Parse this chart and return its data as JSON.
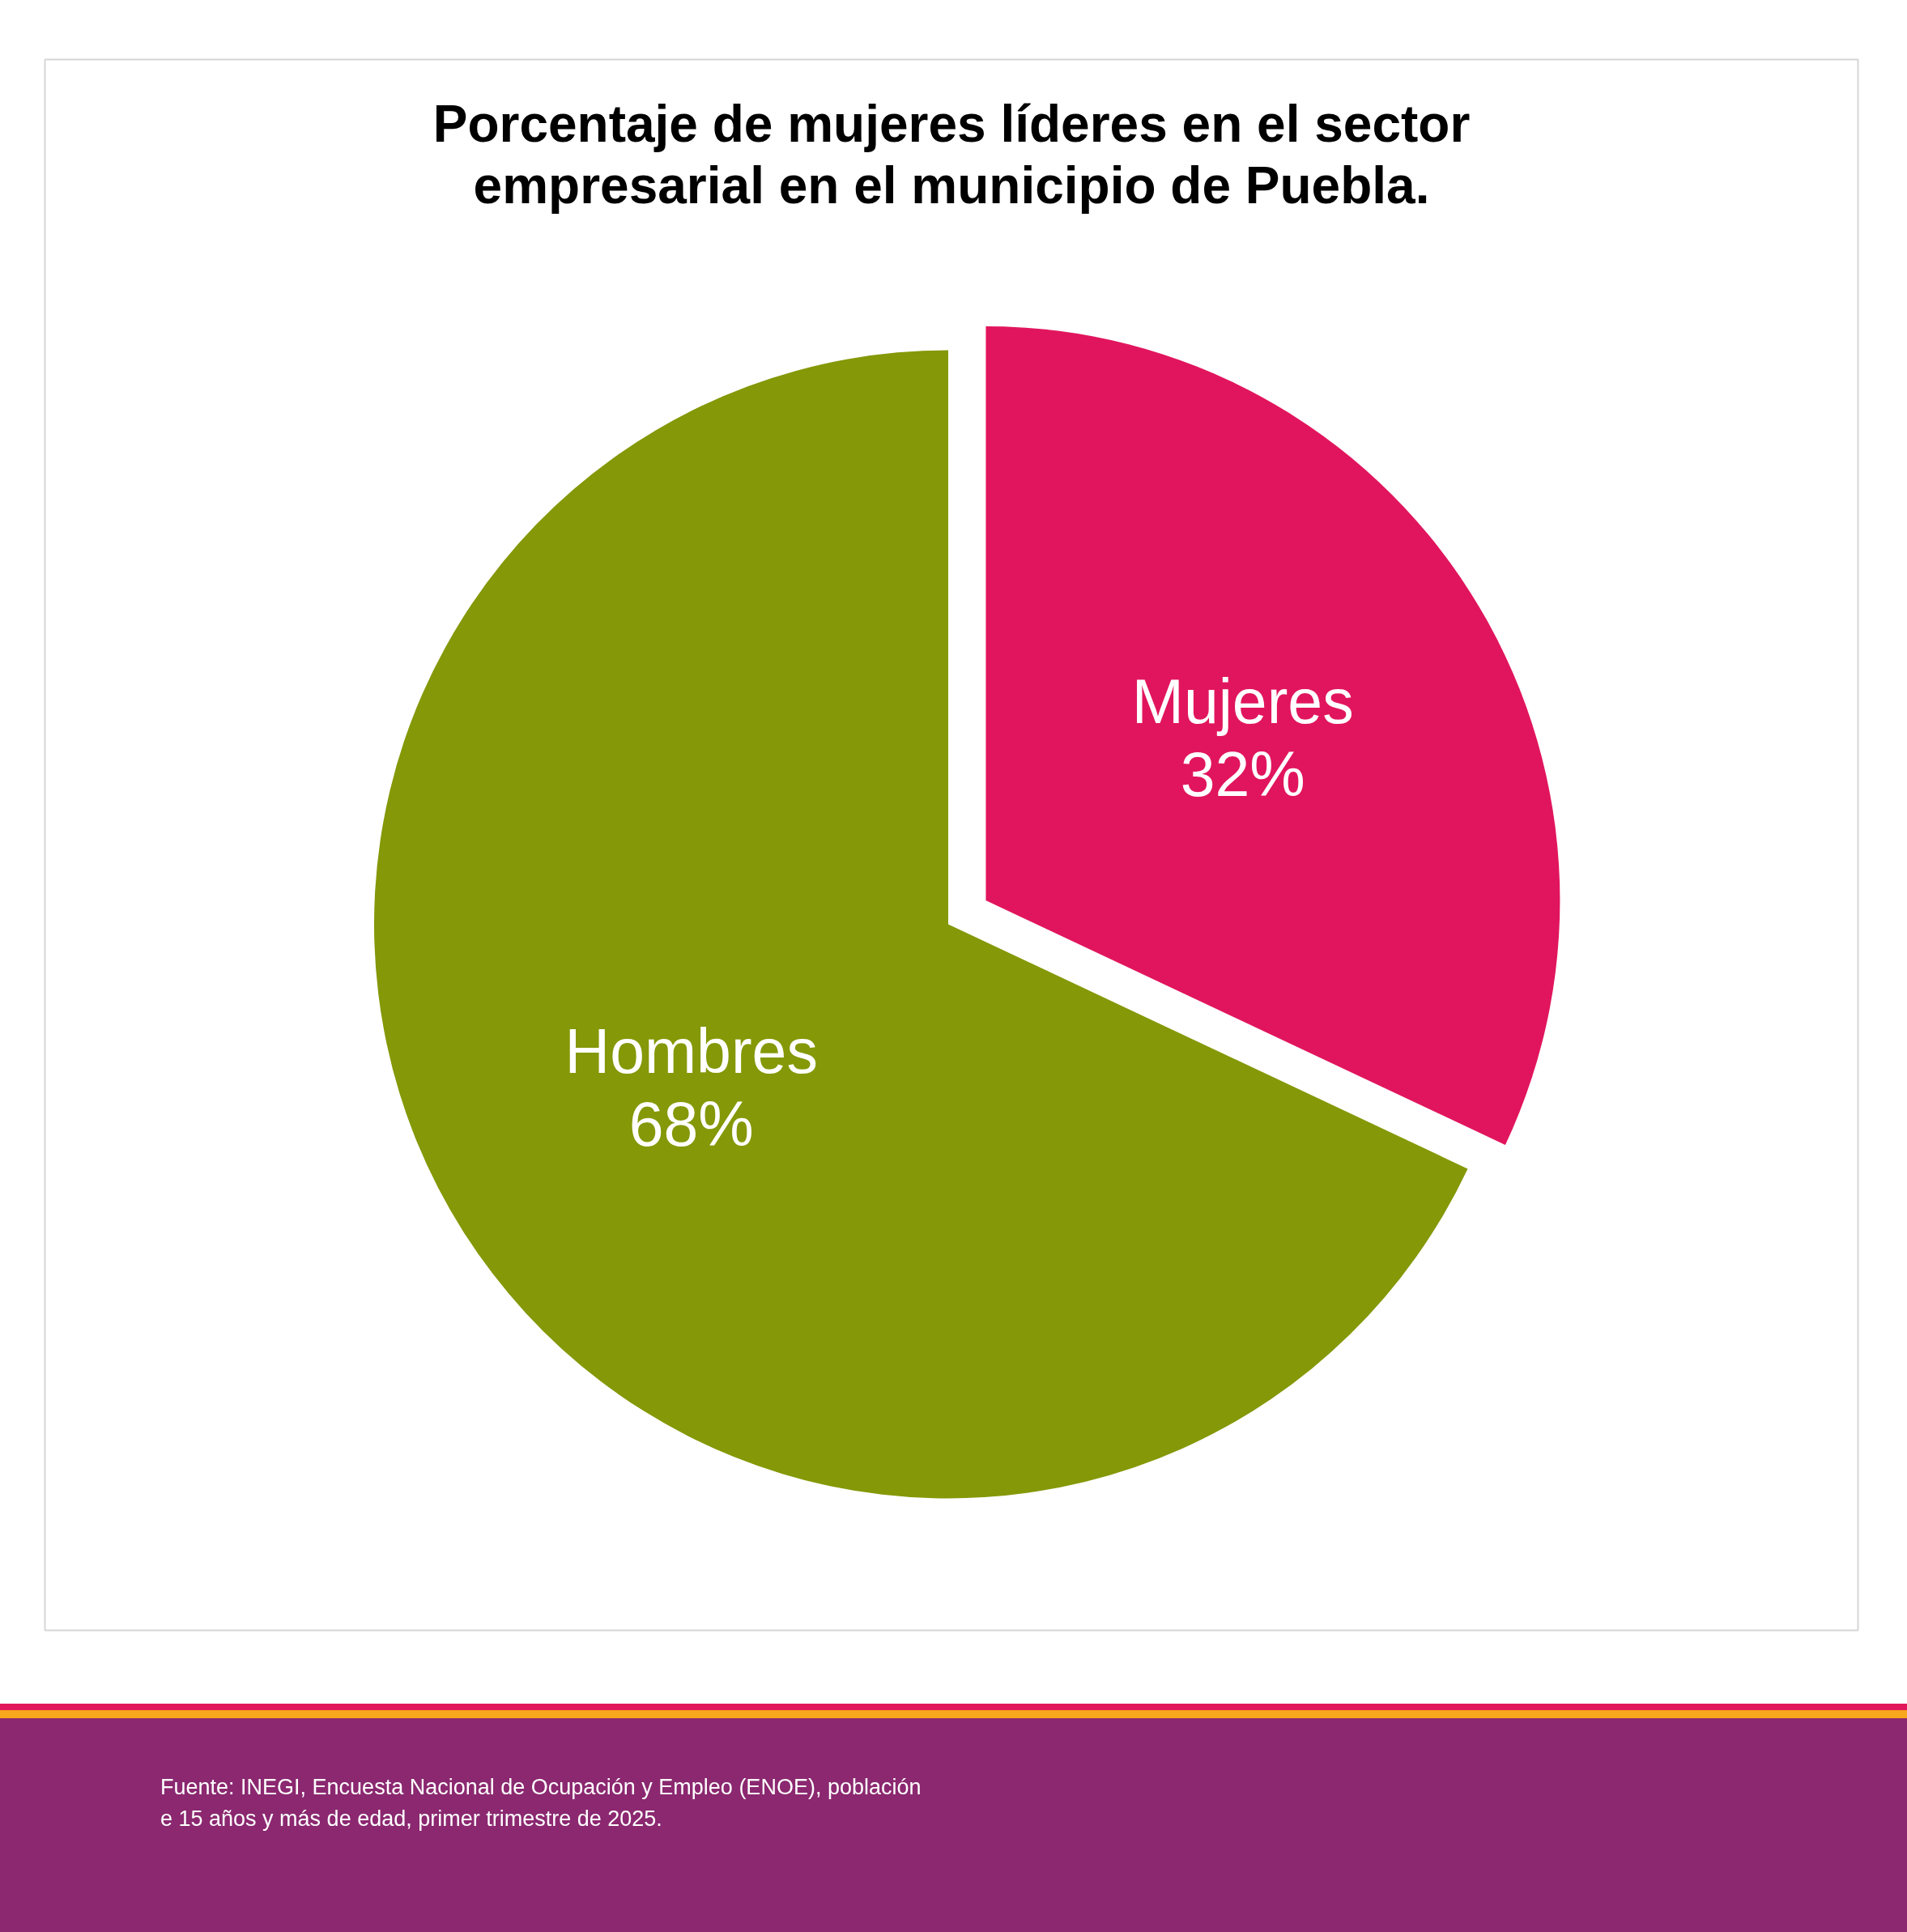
{
  "chart_data": {
    "type": "pie",
    "title": "Porcentaje de mujeres líderes en el sector empresarial en el municipio de Puebla.",
    "categories": [
      "Mujeres",
      "Hombres"
    ],
    "values": [
      32,
      68
    ],
    "colors": [
      "#e1155d",
      "#859807"
    ],
    "value_labels": [
      "32%",
      "68%"
    ],
    "annotations": [
      "Fuente: INEGI, Encuesta Nacional de Ocupación y Empleo (ENOE), población e 15 años y más de edad, primer trimestre de 2025."
    ]
  }
}
